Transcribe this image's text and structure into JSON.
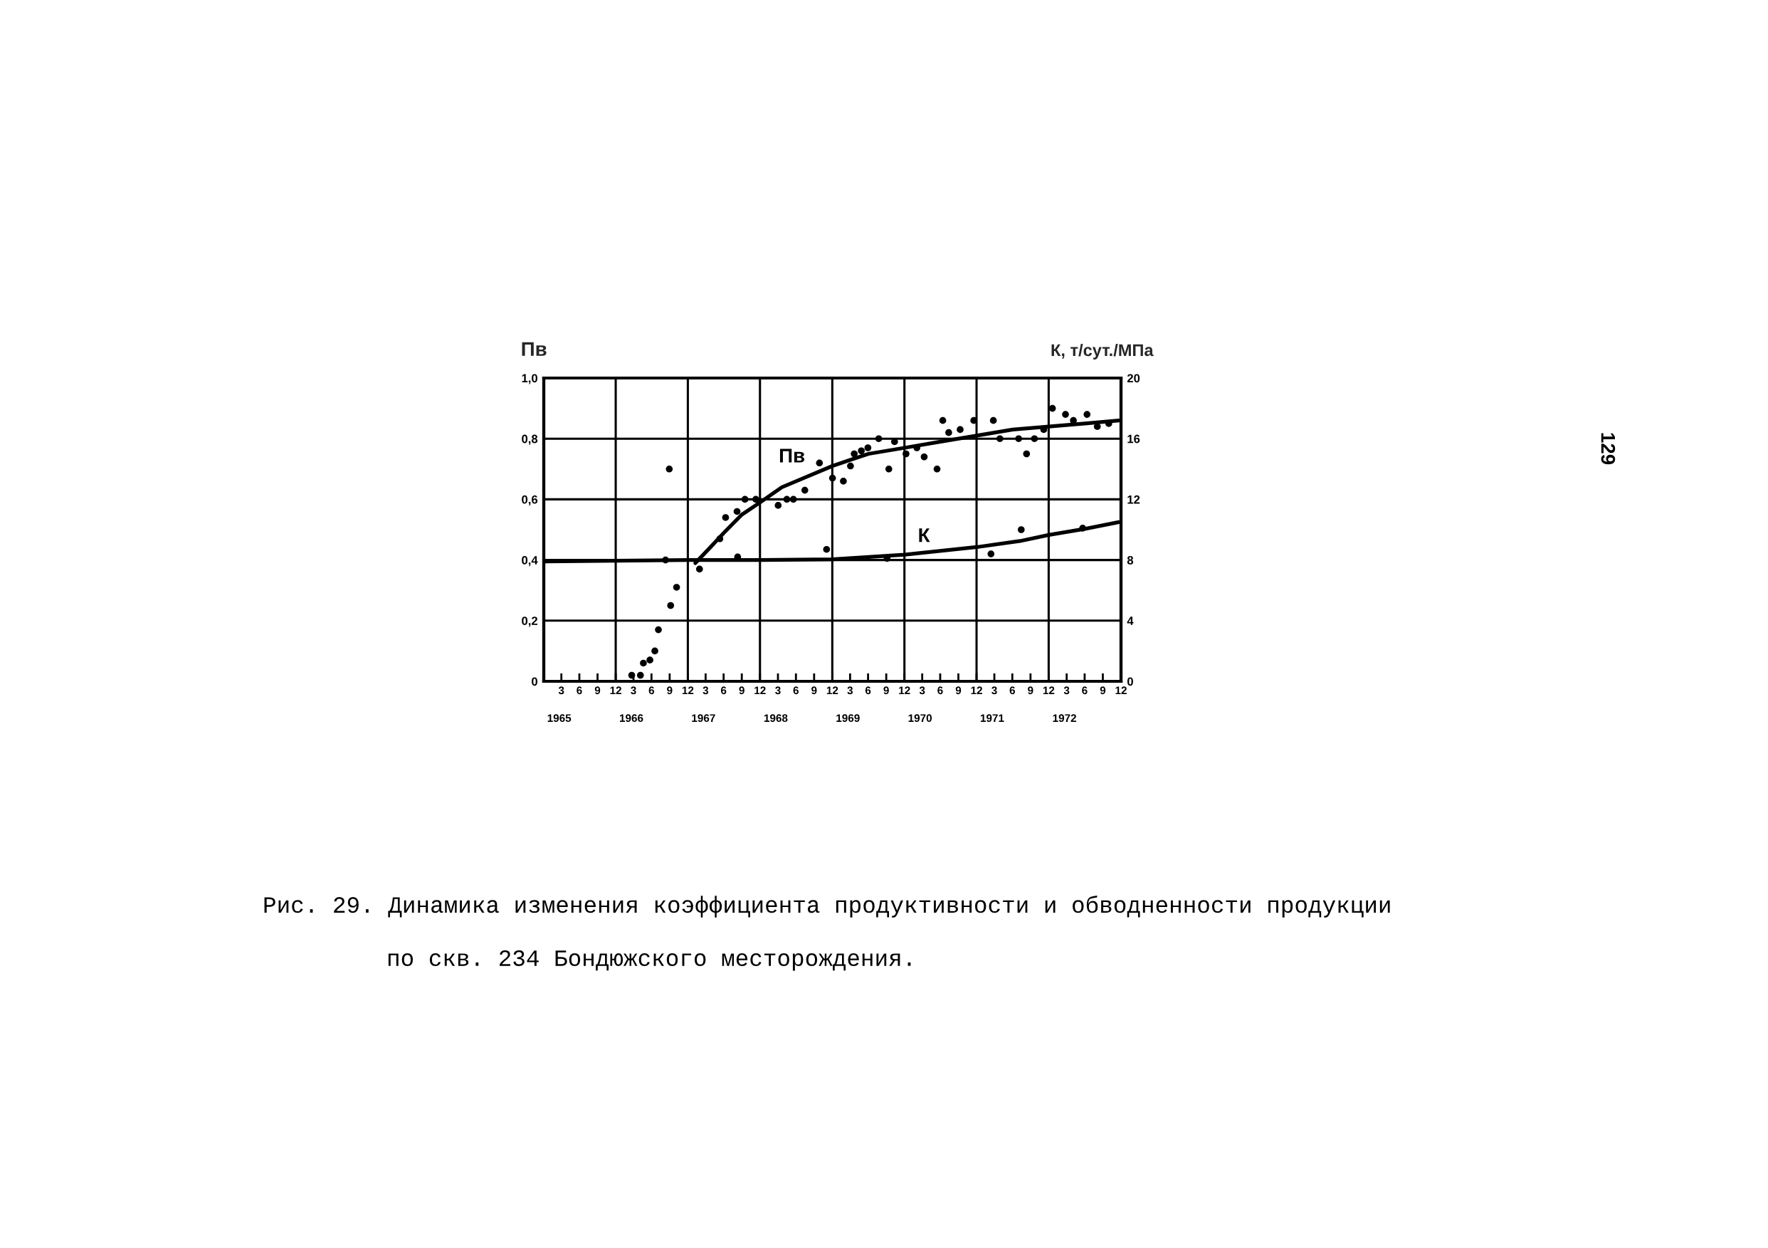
{
  "chart_data": {
    "type": "scatter",
    "ylabel": "Пв",
    "y2label": "К, т/сут./МПа",
    "annotations": [
      "Рис. 29. Динамика изменения коэффициента продуктивности и обводненности продукции\nпо скв. 234 Бондюжского месторождения.",
      "129"
    ],
    "xlim": [
      "1965-01-01",
      "1972-12-31"
    ],
    "xticks": [
      {
        "value": "1965-03-31",
        "label": "3"
      },
      {
        "value": "1965-06-30",
        "label": "6"
      },
      {
        "value": "1965-09-30",
        "label": "9"
      },
      {
        "value": "1965-12-31",
        "label": "12"
      },
      {
        "value": "1966-03-31",
        "label": "3"
      },
      {
        "value": "1966-06-30",
        "label": "6"
      },
      {
        "value": "1966-09-30",
        "label": "9"
      },
      {
        "value": "1966-12-31",
        "label": "12"
      },
      {
        "value": "1967-03-31",
        "label": "3"
      },
      {
        "value": "1967-06-30",
        "label": "6"
      },
      {
        "value": "1967-09-30",
        "label": "9"
      },
      {
        "value": "1967-12-31",
        "label": "12"
      },
      {
        "value": "1968-03-31",
        "label": "3"
      },
      {
        "value": "1968-06-30",
        "label": "6"
      },
      {
        "value": "1968-09-30",
        "label": "9"
      },
      {
        "value": "1968-12-31",
        "label": "12"
      },
      {
        "value": "1969-03-31",
        "label": "3"
      },
      {
        "value": "1969-06-30",
        "label": "6"
      },
      {
        "value": "1969-09-30",
        "label": "9"
      },
      {
        "value": "1969-12-31",
        "label": "12"
      },
      {
        "value": "1970-03-31",
        "label": "3"
      },
      {
        "value": "1970-06-30",
        "label": "6"
      },
      {
        "value": "1970-09-30",
        "label": "9"
      },
      {
        "value": "1970-12-31",
        "label": "12"
      },
      {
        "value": "1971-03-31",
        "label": "3"
      },
      {
        "value": "1971-06-30",
        "label": "6"
      },
      {
        "value": "1971-09-30",
        "label": "9"
      },
      {
        "value": "1971-12-31",
        "label": "12"
      },
      {
        "value": "1972-03-31",
        "label": "3"
      },
      {
        "value": "1972-06-30",
        "label": "6"
      },
      {
        "value": "1972-09-30",
        "label": "9"
      },
      {
        "value": "1972-12-31",
        "label": "12"
      }
    ],
    "x2lim": [
      "1965-01-01",
      "1972-12-31"
    ],
    "x2ticks": [
      {
        "value": "1965-03-20",
        "label": "1965"
      },
      {
        "value": "1966-03-20",
        "label": "1966"
      },
      {
        "value": "1967-03-20",
        "label": "1967"
      },
      {
        "value": "1968-03-20",
        "label": "1968"
      },
      {
        "value": "1969-03-20",
        "label": "1969"
      },
      {
        "value": "1970-03-20",
        "label": "1970"
      },
      {
        "value": "1971-03-20",
        "label": "1971"
      },
      {
        "value": "1972-03-20",
        "label": "1972"
      }
    ],
    "ylim": [
      0,
      1.0
    ],
    "yticks": [
      0,
      {
        "value": 0.2,
        "label": "0,2"
      },
      {
        "value": 0.4,
        "label": "0,4"
      },
      {
        "value": 0.6,
        "label": "0,6"
      },
      {
        "value": 0.8,
        "label": "0,8"
      },
      {
        "value": 1.0,
        "label": "1,0"
      }
    ],
    "y2lim": [
      0,
      20
    ],
    "y2ticks": [
      0,
      4,
      8,
      12,
      16,
      20
    ],
    "grid": "y",
    "marker": "circle",
    "line_style": "solid",
    "ref_lines": [
      {
        "axis": "x",
        "value": "1965-12-31",
        "color": "#000000"
      },
      {
        "axis": "x",
        "value": "1966-12-31",
        "color": "#000000"
      },
      {
        "axis": "x",
        "value": "1967-12-31",
        "color": "#000000"
      },
      {
        "axis": "x",
        "value": "1968-12-31",
        "color": "#000000"
      },
      {
        "axis": "x",
        "value": "1969-12-31",
        "color": "#000000"
      },
      {
        "axis": "x",
        "value": "1970-12-31",
        "color": "#000000"
      },
      {
        "axis": "x",
        "value": "1971-12-31",
        "color": "#000000"
      }
    ],
    "series": [
      {
        "color": "#000000",
        "x": [
          "1966-03-22",
          "1966-05-05",
          "1966-05-20",
          "1966-06-22",
          "1966-07-17",
          "1966-08-04",
          "1966-09-28",
          "1966-10-05",
          "1966-11-04",
          "1967-02-28",
          "1967-06-11",
          "1967-07-10",
          "1967-09-06",
          "1967-10-16",
          "1967-12-10",
          "1968-04-01",
          "1968-05-15",
          "1968-06-17",
          "1968-08-14",
          "1968-10-27",
          "1969-01-01",
          "1969-02-25",
          "1969-04-02",
          "1969-04-21",
          "1969-05-27",
          "1969-06-29",
          "1969-08-23",
          "1969-10-13",
          "1969-11-11",
          "1970-01-08",
          "1970-03-04",
          "1970-04-10",
          "1970-06-14",
          "1970-07-13",
          "1970-08-12",
          "1970-10-09",
          "1970-12-17",
          "1971-03-26",
          "1971-04-28",
          "1971-08-01",
          "1971-09-10",
          "1971-10-20",
          "1971-12-06",
          "1972-01-19",
          "1972-03-25",
          "1972-05-04",
          "1972-07-12",
          "1972-09-02",
          "1972-10-30"
        ],
        "values": [
          0.02,
          0.02,
          0.06,
          0.07,
          0.1,
          0.17,
          0.7,
          0.25,
          0.31,
          0.37,
          0.47,
          0.54,
          0.56,
          0.6,
          0.6,
          0.58,
          0.6,
          0.6,
          0.63,
          0.72,
          0.67,
          0.66,
          0.71,
          0.75,
          0.76,
          0.77,
          0.8,
          0.7,
          0.79,
          0.75,
          0.77,
          0.74,
          0.7,
          0.86,
          0.82,
          0.83,
          0.86,
          0.86,
          0.8,
          0.8,
          0.75,
          0.8,
          0.83,
          0.9,
          0.88,
          0.86,
          0.88,
          0.84,
          0.85
        ]
      },
      {
        "type": "line",
        "name": "Пв",
        "marker": "none",
        "color": "#000000",
        "x": [
          "1967-02-07",
          "1967-04-21",
          "1967-07-02",
          "1967-10-01",
          "1968-01-01",
          "1968-04-20",
          "1968-08-07",
          "1969-01-01",
          "1969-04-01",
          "1969-07-02",
          "1970-01-01",
          "1970-07-02",
          "1971-01-01",
          "1971-07-02",
          "1972-01-01",
          "1972-07-01",
          "1972-12-20"
        ],
        "values": [
          0.39,
          0.44,
          0.49,
          0.55,
          0.59,
          0.64,
          0.67,
          0.71,
          0.73,
          0.75,
          0.77,
          0.79,
          0.81,
          0.83,
          0.84,
          0.85,
          0.86
        ]
      },
      {
        "axis": "y2",
        "color": "#000000",
        "x": [
          "1966-09-09",
          "1967-09-09",
          "1968-12-02",
          "1969-10-04",
          "1971-03-14",
          "1971-08-14",
          "1972-06-20"
        ],
        "values": [
          8.0,
          8.2,
          8.7,
          8.1,
          8.4,
          10.0,
          10.1
        ]
      },
      {
        "type": "line",
        "name": "К",
        "marker": "none",
        "axis": "y2",
        "color": "#000000",
        "x": [
          "1965-01-01",
          "1966-01-01",
          "1967-01-01",
          "1968-01-01",
          "1969-01-01",
          "1970-01-01",
          "1971-01-01",
          "1971-08-08",
          "1972-01-01",
          "1972-07-01",
          "1972-12-20"
        ],
        "values": [
          7.9,
          7.95,
          8.0,
          8.0,
          8.05,
          8.35,
          8.85,
          9.25,
          9.65,
          10.05,
          10.5
        ]
      }
    ]
  }
}
